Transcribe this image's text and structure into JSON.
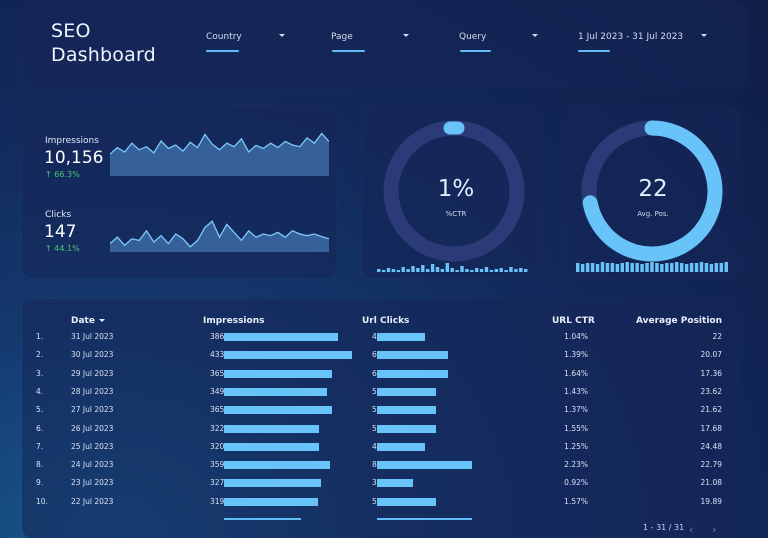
{
  "header": {
    "title_line1": "SEO",
    "title_line2": "Dashboard",
    "filters": [
      {
        "label": "Country"
      },
      {
        "label": "Page"
      },
      {
        "label": "Query"
      },
      {
        "label": "1 Jul 2023 - 31 Jul 2023"
      }
    ]
  },
  "kpis": {
    "impressions": {
      "label": "Impressions",
      "value": "10,156",
      "delta": "66.3%"
    },
    "clicks": {
      "label": "Clicks",
      "value": "147",
      "delta": "44.1%"
    }
  },
  "ctr": {
    "value": "1%",
    "label": "%CTR",
    "fill_fraction": 0.01
  },
  "avg_pos": {
    "value": "22",
    "label": "Avg. Pos.",
    "fill_fraction": 0.72
  },
  "table": {
    "headers": {
      "date": "Date",
      "impressions": "Impressions",
      "clicks": "Url Clicks",
      "ctr": "URL CTR",
      "position": "Average Position"
    },
    "rows": [
      {
        "n": "1.",
        "date": "31 Jul 2023",
        "impressions": "386",
        "clicks": "4",
        "ctr": "1.04%",
        "position": "22"
      },
      {
        "n": "2.",
        "date": "30 Jul 2023",
        "impressions": "433",
        "clicks": "6",
        "ctr": "1.39%",
        "position": "20.07"
      },
      {
        "n": "3.",
        "date": "29 Jul 2023",
        "impressions": "365",
        "clicks": "6",
        "ctr": "1.64%",
        "position": "17.36"
      },
      {
        "n": "4.",
        "date": "28 Jul 2023",
        "impressions": "349",
        "clicks": "5",
        "ctr": "1.43%",
        "position": "23.62"
      },
      {
        "n": "5.",
        "date": "27 Jul 2023",
        "impressions": "365",
        "clicks": "5",
        "ctr": "1.37%",
        "position": "21.62"
      },
      {
        "n": "6.",
        "date": "26 Jul 2023",
        "impressions": "322",
        "clicks": "5",
        "ctr": "1.55%",
        "position": "17.68"
      },
      {
        "n": "7.",
        "date": "25 Jul 2023",
        "impressions": "320",
        "clicks": "4",
        "ctr": "1.25%",
        "position": "24.48"
      },
      {
        "n": "8.",
        "date": "24 Jul 2023",
        "impressions": "359",
        "clicks": "8",
        "ctr": "2.23%",
        "position": "22.79"
      },
      {
        "n": "9.",
        "date": "23 Jul 2023",
        "impressions": "327",
        "clicks": "3",
        "ctr": "0.92%",
        "position": "21.08"
      },
      {
        "n": "10.",
        "date": "22 Jul 2023",
        "impressions": "319",
        "clicks": "5",
        "ctr": "1.57%",
        "position": "19.89"
      }
    ],
    "pagination": "1 - 31 / 31"
  },
  "colors": {
    "accent": "#68c4f8",
    "donut_track": "#2b3b78",
    "positive": "#4fc27a"
  },
  "icons": {
    "dropdown": "caret-down-icon",
    "sort": "sort-desc-icon",
    "delta": "arrow-up-icon",
    "prev": "chevron-left-icon",
    "next": "chevron-right-icon"
  }
}
